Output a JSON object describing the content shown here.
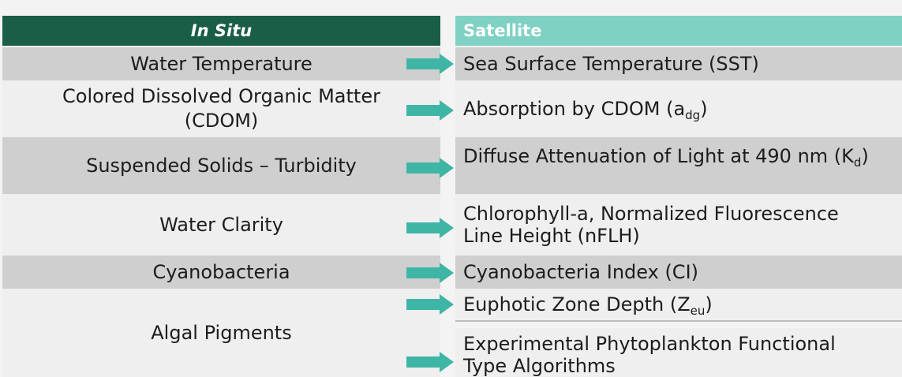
{
  "header": {
    "in_situ": "In Situ",
    "satellite": "Satellite"
  },
  "left": {
    "water_temperature": "Water Temperature",
    "cdom_line1": "Colored Dissolved Organic Matter",
    "cdom_line2": "(CDOM)",
    "suspended_solids": "Suspended Solids – Turbidity",
    "water_clarity": "Water Clarity",
    "cyanobacteria": "Cyanobacteria",
    "algal_pigments": "Algal Pigments"
  },
  "right": {
    "sst": "Sea Surface Temperature (SST)",
    "absorption_prefix": "Absorption by CDOM (a",
    "absorption_sub": "dg",
    "absorption_suffix": ")",
    "diffuse_prefix": "Diffuse Attenuation of Light at 490 nm (K",
    "diffuse_sub": "d",
    "diffuse_suffix": ")",
    "chlorophyll_line1": "Chlorophyll-a, Normalized Fluorescence",
    "chlorophyll_line2": "Line Height (nFLH)",
    "cyano_index": "Cyanobacteria Index (CI)",
    "euphotic_prefix": "Euphotic Zone Depth (Z",
    "euphotic_sub": "eu",
    "euphotic_suffix": ")",
    "phyto_line1": "Experimental Phytoplankton Functional",
    "phyto_line2": "Type Algorithms"
  },
  "colors": {
    "header_dark": "#1b5e48",
    "header_light": "#7fd1c4",
    "arrow": "#3fb5a6",
    "row_dark": "#cfcfcf",
    "row_light": "#efefef"
  }
}
